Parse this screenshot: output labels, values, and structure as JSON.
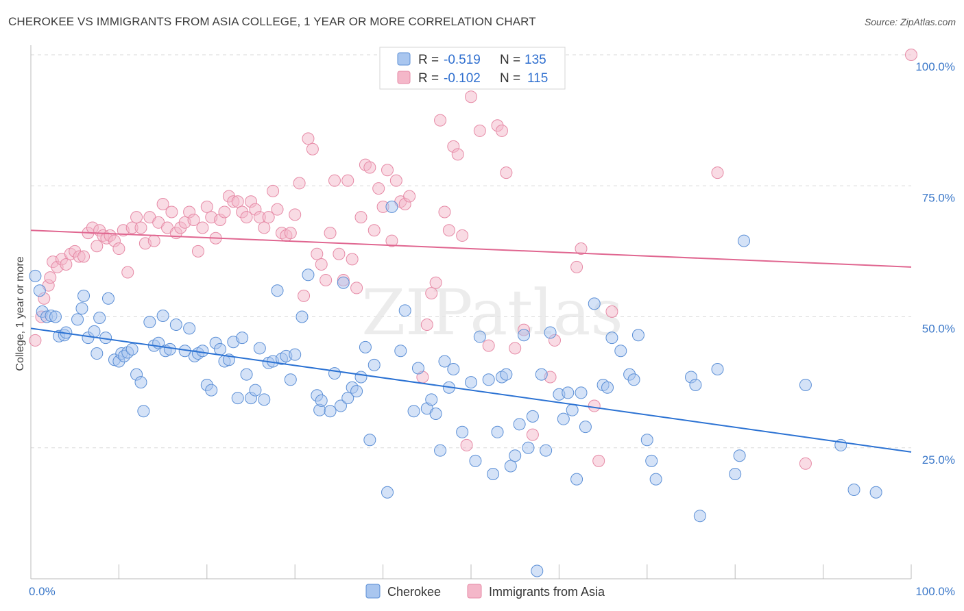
{
  "header": {
    "title": "CHEROKEE VS IMMIGRANTS FROM ASIA COLLEGE, 1 YEAR OR MORE CORRELATION CHART",
    "source": "Source: ZipAtlas.com"
  },
  "watermark": "ZIPatlas",
  "colors": {
    "blue_fill": "#a9c6ef",
    "blue_stroke": "#5b8fd6",
    "blue_line": "#2b72d3",
    "pink_fill": "#f4b7c9",
    "pink_stroke": "#e68aa6",
    "pink_line": "#e06690",
    "grid": "#d8d8d8"
  },
  "stats_legend": {
    "r_label": "R =",
    "n_label": "N =",
    "rows": [
      {
        "series": "Cherokee",
        "r": "-0.519",
        "n": "135"
      },
      {
        "series": "Immigrants from Asia",
        "r": "-0.102",
        "n": "115"
      }
    ]
  },
  "chart_data": {
    "type": "scatter",
    "title": "CHEROKEE VS IMMIGRANTS FROM ASIA COLLEGE, 1 YEAR OR MORE CORRELATION CHART",
    "xlabel": "",
    "ylabel": "College, 1 year or more",
    "xlim": [
      0,
      100
    ],
    "ylim": [
      0,
      100
    ],
    "x_tick_labels": [
      "0.0%",
      "100.0%"
    ],
    "y_tick_labels": [
      "25.0%",
      "50.0%",
      "75.0%",
      "100.0%"
    ],
    "y_ticks": [
      25,
      50,
      75,
      100
    ],
    "grid": true,
    "legend_position": "bottom",
    "series": [
      {
        "name": "Cherokee",
        "color": "blue",
        "trend": {
          "x": [
            0,
            100
          ],
          "y": [
            47.8,
            24.2
          ]
        },
        "points": [
          [
            0.5,
            57.8
          ],
          [
            1,
            55
          ],
          [
            1.3,
            51
          ],
          [
            1.8,
            50
          ],
          [
            2.3,
            50.2
          ],
          [
            2.8,
            50
          ],
          [
            3.2,
            46.3
          ],
          [
            3.8,
            46.5
          ],
          [
            4,
            47
          ],
          [
            5.3,
            49.5
          ],
          [
            5.8,
            51.6
          ],
          [
            6,
            54
          ],
          [
            6.5,
            46
          ],
          [
            7.2,
            47.2
          ],
          [
            7.5,
            43
          ],
          [
            7.8,
            49.8
          ],
          [
            8.5,
            46
          ],
          [
            8.8,
            53.5
          ],
          [
            9.5,
            41.8
          ],
          [
            10,
            41.5
          ],
          [
            10.3,
            43
          ],
          [
            10.6,
            42.5
          ],
          [
            11,
            43.2
          ],
          [
            11.5,
            43.8
          ],
          [
            12,
            39
          ],
          [
            12.5,
            37.5
          ],
          [
            12.8,
            32
          ],
          [
            13.5,
            49
          ],
          [
            14,
            44.5
          ],
          [
            14.5,
            45
          ],
          [
            15,
            50.2
          ],
          [
            15.3,
            43.5
          ],
          [
            15.8,
            43.8
          ],
          [
            16.5,
            48.5
          ],
          [
            17.5,
            43.5
          ],
          [
            18,
            47.8
          ],
          [
            18.6,
            42.5
          ],
          [
            19,
            43
          ],
          [
            19.5,
            43.5
          ],
          [
            20,
            37
          ],
          [
            20.5,
            36
          ],
          [
            21,
            45
          ],
          [
            21.5,
            43.8
          ],
          [
            22,
            41.5
          ],
          [
            22.5,
            41.8
          ],
          [
            23,
            45.2
          ],
          [
            23.5,
            34.5
          ],
          [
            24,
            46
          ],
          [
            24.5,
            39
          ],
          [
            25,
            34.5
          ],
          [
            25.5,
            36
          ],
          [
            26,
            44
          ],
          [
            26.5,
            34.2
          ],
          [
            27,
            41.2
          ],
          [
            27.5,
            41.5
          ],
          [
            28,
            55
          ],
          [
            28.5,
            42
          ],
          [
            29,
            42.5
          ],
          [
            29.5,
            38
          ],
          [
            30,
            42.8
          ],
          [
            30.8,
            50
          ],
          [
            31.5,
            58
          ],
          [
            32.5,
            35
          ],
          [
            32.8,
            32.2
          ],
          [
            33,
            34
          ],
          [
            34,
            32
          ],
          [
            34.5,
            39.2
          ],
          [
            35.2,
            33
          ],
          [
            35.5,
            56.5
          ],
          [
            36,
            34.5
          ],
          [
            36.5,
            36.5
          ],
          [
            37,
            35.8
          ],
          [
            37.5,
            38.5
          ],
          [
            38,
            44.2
          ],
          [
            38.5,
            26.5
          ],
          [
            39,
            40.8
          ],
          [
            40.5,
            16.5
          ],
          [
            41,
            71
          ],
          [
            42,
            43.5
          ],
          [
            42.5,
            51.2
          ],
          [
            43.5,
            32
          ],
          [
            44,
            40.2
          ],
          [
            45,
            32.5
          ],
          [
            45.5,
            34.2
          ],
          [
            46,
            31.5
          ],
          [
            46.5,
            24.5
          ],
          [
            47,
            41.5
          ],
          [
            47.5,
            36.5
          ],
          [
            48,
            40
          ],
          [
            49,
            28
          ],
          [
            50,
            37.5
          ],
          [
            50.5,
            22.5
          ],
          [
            51,
            46.2
          ],
          [
            52,
            38
          ],
          [
            52.5,
            20
          ],
          [
            53,
            28
          ],
          [
            53.5,
            38.5
          ],
          [
            54,
            39
          ],
          [
            54.5,
            21.5
          ],
          [
            55,
            23.5
          ],
          [
            55.5,
            29.5
          ],
          [
            56,
            46.5
          ],
          [
            56.5,
            25
          ],
          [
            57,
            31
          ],
          [
            57.5,
            1.5
          ],
          [
            58,
            39
          ],
          [
            58.5,
            24.5
          ],
          [
            59,
            47
          ],
          [
            60,
            35.2
          ],
          [
            60.5,
            30.5
          ],
          [
            61,
            35.5
          ],
          [
            61.5,
            32.2
          ],
          [
            62,
            19
          ],
          [
            62.5,
            35.5
          ],
          [
            63,
            29
          ],
          [
            64,
            52.5
          ],
          [
            65,
            37
          ],
          [
            65.5,
            36.5
          ],
          [
            66,
            46
          ],
          [
            67,
            43.5
          ],
          [
            68,
            39
          ],
          [
            68.5,
            38
          ],
          [
            69,
            46.5
          ],
          [
            70,
            26.5
          ],
          [
            70.5,
            22.5
          ],
          [
            71,
            19
          ],
          [
            75,
            38.5
          ],
          [
            75.5,
            37
          ],
          [
            76,
            12
          ],
          [
            78,
            40
          ],
          [
            80,
            20
          ],
          [
            80.5,
            23.5
          ],
          [
            81,
            64.5
          ],
          [
            88,
            37
          ],
          [
            92,
            25.5
          ],
          [
            93.5,
            17
          ],
          [
            96,
            16.5
          ]
        ]
      },
      {
        "name": "Immigrants from Asia",
        "color": "pink",
        "trend": {
          "x": [
            0,
            100
          ],
          "y": [
            66.5,
            59.5
          ]
        },
        "points": [
          [
            0.5,
            45.5
          ],
          [
            1.2,
            50
          ],
          [
            1.5,
            53.5
          ],
          [
            2,
            56
          ],
          [
            2.2,
            57.5
          ],
          [
            2.5,
            60.5
          ],
          [
            3,
            59.5
          ],
          [
            3.5,
            61
          ],
          [
            4,
            60
          ],
          [
            4.5,
            62
          ],
          [
            5,
            62.5
          ],
          [
            5.5,
            61.5
          ],
          [
            6,
            61.5
          ],
          [
            6.5,
            66
          ],
          [
            7,
            67
          ],
          [
            7.5,
            63.5
          ],
          [
            7.8,
            66.5
          ],
          [
            8.2,
            65.5
          ],
          [
            8.6,
            65
          ],
          [
            9,
            65.5
          ],
          [
            9.5,
            64.5
          ],
          [
            10,
            63
          ],
          [
            10.5,
            66.5
          ],
          [
            11,
            58.5
          ],
          [
            11.5,
            67
          ],
          [
            12,
            69
          ],
          [
            12.5,
            67
          ],
          [
            13,
            64
          ],
          [
            13.5,
            69
          ],
          [
            14,
            64.5
          ],
          [
            14.5,
            68
          ],
          [
            15,
            71.5
          ],
          [
            15.5,
            67
          ],
          [
            16,
            70
          ],
          [
            16.5,
            66
          ],
          [
            17,
            67
          ],
          [
            17.5,
            68
          ],
          [
            18,
            70
          ],
          [
            18.5,
            68.5
          ],
          [
            19,
            62.5
          ],
          [
            19.5,
            67
          ],
          [
            20,
            71
          ],
          [
            20.5,
            69
          ],
          [
            21,
            65
          ],
          [
            21.5,
            68.5
          ],
          [
            22,
            70
          ],
          [
            22.5,
            73
          ],
          [
            23,
            72
          ],
          [
            23.5,
            72
          ],
          [
            24,
            70
          ],
          [
            24.5,
            69
          ],
          [
            25,
            72
          ],
          [
            25.5,
            70.5
          ],
          [
            26,
            69
          ],
          [
            26.5,
            67
          ],
          [
            27,
            69
          ],
          [
            27.5,
            74
          ],
          [
            28,
            70.5
          ],
          [
            28.5,
            66
          ],
          [
            29,
            65.5
          ],
          [
            29.5,
            66
          ],
          [
            30,
            69.5
          ],
          [
            30.5,
            75.5
          ],
          [
            31,
            54
          ],
          [
            31.5,
            84
          ],
          [
            32,
            82
          ],
          [
            32.5,
            62
          ],
          [
            33,
            60
          ],
          [
            33.5,
            57
          ],
          [
            34,
            66
          ],
          [
            34.5,
            76
          ],
          [
            35,
            62
          ],
          [
            35.5,
            57
          ],
          [
            36,
            76
          ],
          [
            36.5,
            61
          ],
          [
            37,
            55.5
          ],
          [
            37.5,
            69
          ],
          [
            38,
            79
          ],
          [
            38.5,
            78.5
          ],
          [
            39,
            66.5
          ],
          [
            39.5,
            74.5
          ],
          [
            40,
            71
          ],
          [
            40.5,
            78
          ],
          [
            41,
            64.5
          ],
          [
            41.5,
            76
          ],
          [
            42,
            72
          ],
          [
            42.5,
            71.5
          ],
          [
            43,
            73
          ],
          [
            44.5,
            38.5
          ],
          [
            45,
            48.5
          ],
          [
            45.5,
            54.5
          ],
          [
            46,
            56.5
          ],
          [
            46.5,
            87.5
          ],
          [
            47,
            70
          ],
          [
            47.5,
            66.5
          ],
          [
            48,
            82.5
          ],
          [
            48.5,
            81
          ],
          [
            49,
            65.5
          ],
          [
            49.5,
            25.5
          ],
          [
            50,
            92
          ],
          [
            51,
            85.5
          ],
          [
            52,
            44.5
          ],
          [
            53,
            86.5
          ],
          [
            53.5,
            85.5
          ],
          [
            54,
            77.5
          ],
          [
            55,
            44
          ],
          [
            56,
            47.5
          ],
          [
            57,
            27.5
          ],
          [
            59,
            38.5
          ],
          [
            59.5,
            45.5
          ],
          [
            62,
            59.5
          ],
          [
            62.5,
            63
          ],
          [
            64,
            33
          ],
          [
            64.5,
            22.5
          ],
          [
            66,
            51
          ],
          [
            78,
            77.5
          ],
          [
            88,
            22
          ],
          [
            100,
            100
          ]
        ]
      }
    ]
  }
}
